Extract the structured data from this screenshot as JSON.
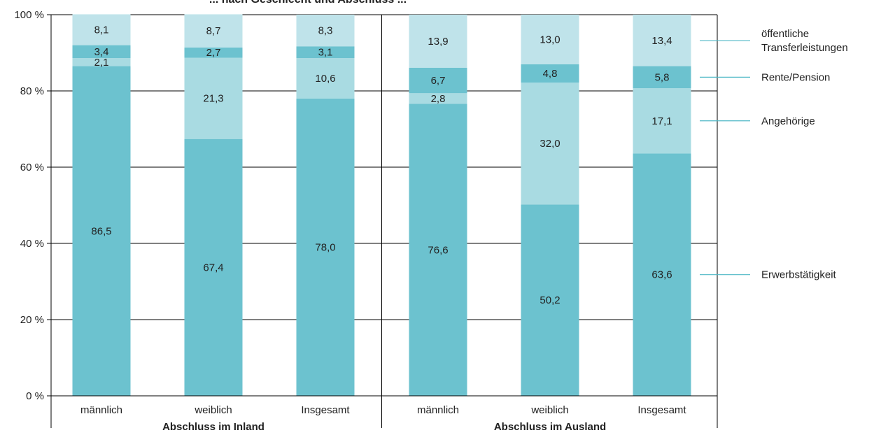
{
  "chart_data": {
    "type": "bar",
    "stacked": true,
    "y_axis": {
      "min": 0,
      "max": 100,
      "ticks": [
        0,
        20,
        40,
        60,
        80,
        100
      ],
      "tick_labels": [
        "0 %",
        "20 %",
        "40 %",
        "60 %",
        "80 %",
        "100 %"
      ]
    },
    "grid": true,
    "groups": [
      {
        "label": "Abschluss im Inland",
        "categories": [
          "männlich",
          "weiblich",
          "Insgesamt"
        ]
      },
      {
        "label": "Abschluss im Ausland",
        "categories": [
          "männlich",
          "weiblich",
          "Insgesamt"
        ]
      }
    ],
    "series": [
      {
        "name": "Erwerbstätigkeit",
        "color": "#6cc2cf",
        "values": [
          86.5,
          67.4,
          78.0,
          76.6,
          50.2,
          63.6
        ],
        "labels": [
          "86,5",
          "67,4",
          "78,0",
          "76,6",
          "50,2",
          "63,6"
        ]
      },
      {
        "name": "Angehörige",
        "color": "#a9dbe2",
        "values": [
          2.1,
          21.3,
          10.6,
          2.8,
          32.0,
          17.1
        ],
        "labels": [
          "2,1",
          "21,3",
          "10,6",
          "2,8",
          "32,0",
          "17,1"
        ]
      },
      {
        "name": "Rente/Pension",
        "color": "#6cc2cf",
        "values": [
          3.4,
          2.7,
          3.1,
          6.7,
          4.8,
          5.8
        ],
        "labels": [
          "3,4",
          "2,7",
          "3,1",
          "6,7",
          "4,8",
          "5,8"
        ]
      },
      {
        "name": "öffentliche Transferleistungen",
        "color": "#bfe3ea",
        "values": [
          8.1,
          8.7,
          8.3,
          13.9,
          13.0,
          13.4
        ],
        "labels": [
          "8,1",
          "8,7",
          "8,3",
          "13,9",
          "13,0",
          "13,4"
        ]
      }
    ],
    "legend": {
      "placement": "right",
      "items": [
        {
          "series": "öffentliche Transferleistungen",
          "lines": [
            "öffentliche",
            "Transferleistungen"
          ]
        },
        {
          "series": "Rente/Pension",
          "lines": [
            "Rente/Pension"
          ]
        },
        {
          "series": "Angehörige",
          "lines": [
            "Angehörige"
          ]
        },
        {
          "series": "Erwerbstätigkeit",
          "lines": [
            "Erwerbstätigkeit"
          ]
        }
      ]
    },
    "title_partial": "... nach Geschlecht und Abschluss ..."
  }
}
